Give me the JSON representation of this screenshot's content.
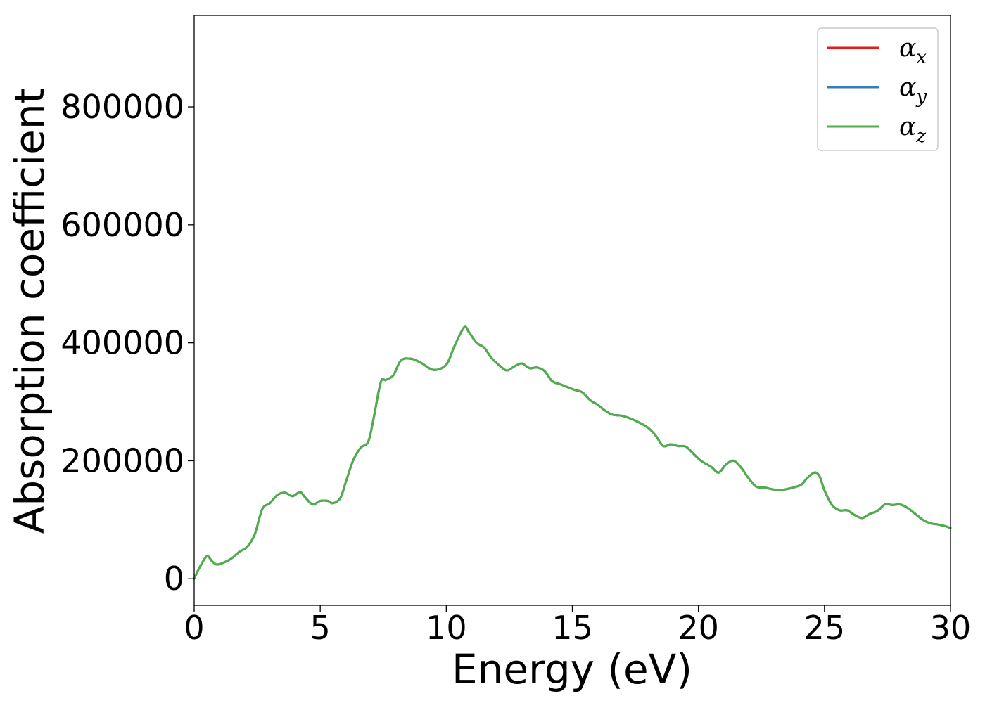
{
  "chart_data": {
    "type": "line",
    "title": "",
    "xlabel": "Energy (eV)",
    "ylabel": "Absorption coefficient",
    "xlim": [
      0,
      30
    ],
    "ylim": [
      -45000,
      955000
    ],
    "xticks": [
      0,
      5,
      10,
      15,
      20,
      25,
      30
    ],
    "yticks": [
      0,
      200000,
      400000,
      600000,
      800000
    ],
    "grid": false,
    "legend_position": "top-right",
    "series": [
      {
        "name": "α",
        "subscript": "x",
        "color": "#e41a1c",
        "x": [
          0.0,
          0.2,
          0.5,
          0.7,
          0.9,
          1.2,
          1.5,
          1.8,
          2.1,
          2.4,
          2.7,
          3.0,
          3.3,
          3.6,
          3.9,
          4.2,
          4.4,
          4.7,
          5.0,
          5.3,
          5.5,
          5.8,
          6.0,
          6.3,
          6.6,
          6.9,
          7.1,
          7.4,
          7.6,
          7.9,
          8.2,
          8.6,
          9.0,
          9.5,
          10.0,
          10.3,
          10.7,
          10.9,
          11.2,
          11.5,
          11.8,
          12.1,
          12.4,
          12.7,
          13.0,
          13.3,
          13.6,
          13.9,
          14.2,
          14.5,
          14.8,
          15.1,
          15.4,
          15.7,
          16.0,
          16.3,
          16.6,
          17.0,
          17.5,
          18.0,
          18.3,
          18.6,
          18.9,
          19.2,
          19.5,
          19.8,
          20.1,
          20.5,
          20.8,
          21.1,
          21.4,
          21.7,
          22.0,
          22.3,
          22.6,
          22.9,
          23.2,
          23.5,
          23.8,
          24.1,
          24.3,
          24.6,
          24.8,
          25.0,
          25.3,
          25.6,
          25.9,
          26.2,
          26.5,
          26.8,
          27.1,
          27.4,
          27.7,
          28.0,
          28.3,
          28.6,
          28.9,
          29.2,
          29.5,
          29.8,
          30.0
        ],
        "y": [
          0,
          18000,
          38000,
          30000,
          24000,
          28000,
          35000,
          46000,
          54000,
          75000,
          118000,
          128000,
          142000,
          146000,
          140000,
          147000,
          138000,
          126000,
          132000,
          132000,
          128000,
          137000,
          162000,
          200000,
          222000,
          232000,
          268000,
          333000,
          337000,
          345000,
          370000,
          373000,
          366000,
          354000,
          363000,
          392000,
          426000,
          418000,
          400000,
          392000,
          374000,
          362000,
          353000,
          360000,
          365000,
          357000,
          358000,
          352000,
          335000,
          330000,
          325000,
          320000,
          316000,
          303000,
          295000,
          285000,
          278000,
          276000,
          268000,
          256000,
          243000,
          225000,
          228000,
          225000,
          224000,
          212000,
          200000,
          190000,
          180000,
          194000,
          200000,
          188000,
          170000,
          156000,
          155000,
          152000,
          150000,
          152000,
          155000,
          160000,
          170000,
          180000,
          174000,
          150000,
          125000,
          116000,
          116000,
          108000,
          103000,
          110000,
          115000,
          126000,
          125000,
          126000,
          120000,
          110000,
          100000,
          94000,
          92000,
          89000,
          86000
        ]
      },
      {
        "name": "α",
        "subscript": "y",
        "color": "#377eb8",
        "x": [
          0.0,
          0.2,
          0.5,
          0.7,
          0.9,
          1.2,
          1.5,
          1.8,
          2.1,
          2.4,
          2.7,
          3.0,
          3.3,
          3.6,
          3.9,
          4.2,
          4.4,
          4.7,
          5.0,
          5.3,
          5.5,
          5.8,
          6.0,
          6.3,
          6.6,
          6.9,
          7.1,
          7.4,
          7.6,
          7.9,
          8.2,
          8.6,
          9.0,
          9.5,
          10.0,
          10.3,
          10.7,
          10.9,
          11.2,
          11.5,
          11.8,
          12.1,
          12.4,
          12.7,
          13.0,
          13.3,
          13.6,
          13.9,
          14.2,
          14.5,
          14.8,
          15.1,
          15.4,
          15.7,
          16.0,
          16.3,
          16.6,
          17.0,
          17.5,
          18.0,
          18.3,
          18.6,
          18.9,
          19.2,
          19.5,
          19.8,
          20.1,
          20.5,
          20.8,
          21.1,
          21.4,
          21.7,
          22.0,
          22.3,
          22.6,
          22.9,
          23.2,
          23.5,
          23.8,
          24.1,
          24.3,
          24.6,
          24.8,
          25.0,
          25.3,
          25.6,
          25.9,
          26.2,
          26.5,
          26.8,
          27.1,
          27.4,
          27.7,
          28.0,
          28.3,
          28.6,
          28.9,
          29.2,
          29.5,
          29.8,
          30.0
        ],
        "y": [
          0,
          18000,
          38000,
          30000,
          24000,
          28000,
          35000,
          46000,
          54000,
          75000,
          118000,
          128000,
          142000,
          146000,
          140000,
          147000,
          138000,
          126000,
          132000,
          132000,
          128000,
          137000,
          162000,
          200000,
          222000,
          232000,
          268000,
          333000,
          337000,
          345000,
          370000,
          373000,
          366000,
          354000,
          363000,
          392000,
          426000,
          418000,
          400000,
          392000,
          374000,
          362000,
          353000,
          360000,
          365000,
          357000,
          358000,
          352000,
          335000,
          330000,
          325000,
          320000,
          316000,
          303000,
          295000,
          285000,
          278000,
          276000,
          268000,
          256000,
          243000,
          225000,
          228000,
          225000,
          224000,
          212000,
          200000,
          190000,
          180000,
          194000,
          200000,
          188000,
          170000,
          156000,
          155000,
          152000,
          150000,
          152000,
          155000,
          160000,
          170000,
          180000,
          174000,
          150000,
          125000,
          116000,
          116000,
          108000,
          103000,
          110000,
          115000,
          126000,
          125000,
          126000,
          120000,
          110000,
          100000,
          94000,
          92000,
          89000,
          86000
        ]
      },
      {
        "name": "α",
        "subscript": "z",
        "color": "#4daf4a",
        "x": [
          0.0,
          0.2,
          0.5,
          0.7,
          0.9,
          1.2,
          1.5,
          1.8,
          2.1,
          2.4,
          2.7,
          3.0,
          3.3,
          3.6,
          3.9,
          4.2,
          4.4,
          4.7,
          5.0,
          5.3,
          5.5,
          5.8,
          6.0,
          6.3,
          6.6,
          6.9,
          7.1,
          7.4,
          7.6,
          7.9,
          8.2,
          8.6,
          9.0,
          9.5,
          10.0,
          10.3,
          10.7,
          10.9,
          11.2,
          11.5,
          11.8,
          12.1,
          12.4,
          12.7,
          13.0,
          13.3,
          13.6,
          13.9,
          14.2,
          14.5,
          14.8,
          15.1,
          15.4,
          15.7,
          16.0,
          16.3,
          16.6,
          17.0,
          17.5,
          18.0,
          18.3,
          18.6,
          18.9,
          19.2,
          19.5,
          19.8,
          20.1,
          20.5,
          20.8,
          21.1,
          21.4,
          21.7,
          22.0,
          22.3,
          22.6,
          22.9,
          23.2,
          23.5,
          23.8,
          24.1,
          24.3,
          24.6,
          24.8,
          25.0,
          25.3,
          25.6,
          25.9,
          26.2,
          26.5,
          26.8,
          27.1,
          27.4,
          27.7,
          28.0,
          28.3,
          28.6,
          28.9,
          29.2,
          29.5,
          29.8,
          30.0
        ],
        "y": [
          0,
          18000,
          38000,
          30000,
          24000,
          28000,
          35000,
          46000,
          54000,
          75000,
          118000,
          128000,
          142000,
          146000,
          140000,
          147000,
          138000,
          126000,
          132000,
          132000,
          128000,
          137000,
          162000,
          200000,
          222000,
          232000,
          268000,
          333000,
          337000,
          345000,
          370000,
          373000,
          366000,
          354000,
          363000,
          392000,
          426000,
          418000,
          400000,
          392000,
          374000,
          362000,
          353000,
          360000,
          365000,
          357000,
          358000,
          352000,
          335000,
          330000,
          325000,
          320000,
          316000,
          303000,
          295000,
          285000,
          278000,
          276000,
          268000,
          256000,
          243000,
          225000,
          228000,
          225000,
          224000,
          212000,
          200000,
          190000,
          180000,
          194000,
          200000,
          188000,
          170000,
          156000,
          155000,
          152000,
          150000,
          152000,
          155000,
          160000,
          170000,
          180000,
          174000,
          150000,
          125000,
          116000,
          116000,
          108000,
          103000,
          110000,
          115000,
          126000,
          125000,
          126000,
          120000,
          110000,
          100000,
          94000,
          92000,
          89000,
          86000
        ]
      }
    ]
  }
}
